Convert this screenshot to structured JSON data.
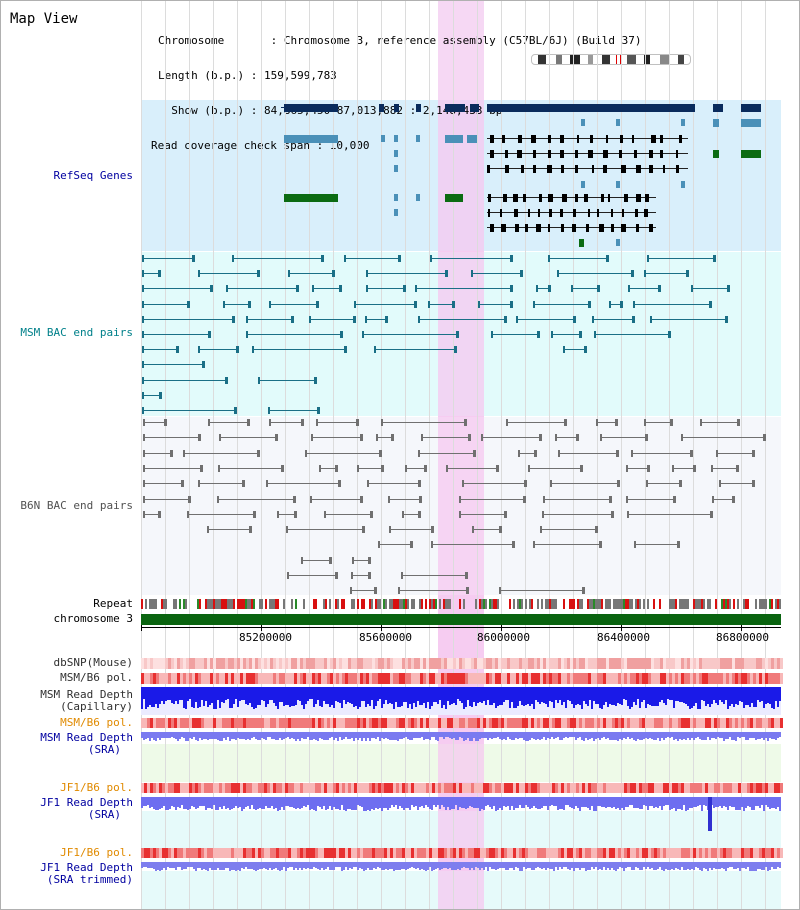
{
  "header": {
    "view_title": "Map View",
    "info_lines": [
      "Chromosome       : Chromosome 3, reference assembly (C57BL/6J) (Build 37)",
      "Length (b.p.) : 159,599,783",
      "  Show (b.p.) : 84,865,450-87,013,882 : 2,148,433 bp",
      "Read coverage check span : 10,000"
    ]
  },
  "tracks": {
    "refseq": "RefSeq Genes",
    "msm_bac": "MSM BAC end pairs",
    "b6n_bac": "B6N BAC end pairs",
    "repeat": "Repeat",
    "chromosome": "chromosome 3",
    "dbsnp": "dbSNP(Mouse)",
    "msm_b6_pol_1": "MSM/B6 pol.",
    "msm_read_depth_cap_1": "MSM Read Depth",
    "msm_read_depth_cap_2": "(Capillary)",
    "msm_b6_pol_2": "MSM/B6 pol.",
    "msm_read_depth_sra_1": "MSM Read Depth",
    "msm_read_depth_sra_2": "(SRA)",
    "jf1_b6_pol_1": "JF1/B6 pol.",
    "jf1_read_depth_sra_1": "JF1 Read Depth",
    "jf1_read_depth_sra_2": "(SRA)",
    "jf1_b6_pol_2": "JF1/B6 pol.",
    "jf1_read_depth_trim_1": "JF1 Read Depth",
    "jf1_read_depth_trim_2": "(SRA trimmed)"
  },
  "axis": {
    "ticks": [
      "85200000",
      "85600000",
      "86000000",
      "86400000",
      "86800000"
    ]
  },
  "colors": {
    "highlight": "#f6d8f4",
    "refseq_bg": "#d9effb",
    "msm_bg": "#e2fbfb",
    "b6n_bg": "#f5f7fb",
    "navy": "#0a2b5c",
    "steel": "#4a90b8",
    "green": "#0b6b12",
    "teal": "#1a6f86",
    "gray": "#707070",
    "label_blue": "#0000a0",
    "label_teal": "#00808a",
    "label_gray": "#505050",
    "label_orange": "#e08a00"
  }
}
